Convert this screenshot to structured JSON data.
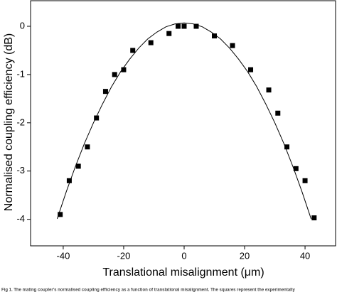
{
  "chart_data": {
    "type": "scatter",
    "x_label": "Translational misalignment (μm)",
    "y_label": "Normalised coupling efficiency (dB)",
    "xlim": [
      -50.8,
      50.1
    ],
    "ylim": [
      -4.55,
      0.53
    ],
    "xticks": [
      -40,
      -20,
      0,
      20,
      40
    ],
    "yticks": [
      -4,
      -3,
      -2,
      -1,
      0
    ],
    "series": [
      {
        "style": "markers",
        "color": "#000000",
        "x": [
          -41,
          -38,
          -35,
          -32,
          -29,
          -26,
          -23,
          -20,
          -17,
          -11,
          -5,
          -2,
          0,
          4,
          10,
          16,
          22,
          28,
          31,
          34,
          37,
          40,
          43
        ],
        "values": [
          -3.9,
          -3.2,
          -2.9,
          -2.5,
          -1.9,
          -1.35,
          -1.0,
          -0.9,
          -0.5,
          -0.34,
          -0.15,
          0,
          0,
          0,
          -0.2,
          -0.4,
          -0.9,
          -1.32,
          -1.8,
          -2.5,
          -2.95,
          -3.2,
          -3.97
        ]
      },
      {
        "style": "line",
        "color": "#000000",
        "x": [
          -42,
          -39,
          -36,
          -33,
          -30,
          -27,
          -24,
          -21,
          -18,
          -15,
          -12,
          -9,
          -6,
          -3,
          0,
          3,
          6,
          9,
          12,
          15,
          18,
          21,
          24,
          27,
          30,
          33,
          36,
          39,
          42
        ],
        "values": [
          -3.99,
          -3.43,
          -2.91,
          -2.43,
          -2.0,
          -1.61,
          -1.25,
          -0.94,
          -0.68,
          -0.45,
          -0.26,
          -0.12,
          -0.01,
          0.05,
          0.07,
          0.05,
          -0.01,
          -0.12,
          -0.26,
          -0.45,
          -0.68,
          -0.94,
          -1.25,
          -1.61,
          -2.0,
          -2.43,
          -2.91,
          -3.43,
          -3.99
        ]
      }
    ],
    "caption": "Fig 1. The mating coupler's normalised coupling efficiency as a function of translational misalignment. The squares represent the experimentally"
  }
}
